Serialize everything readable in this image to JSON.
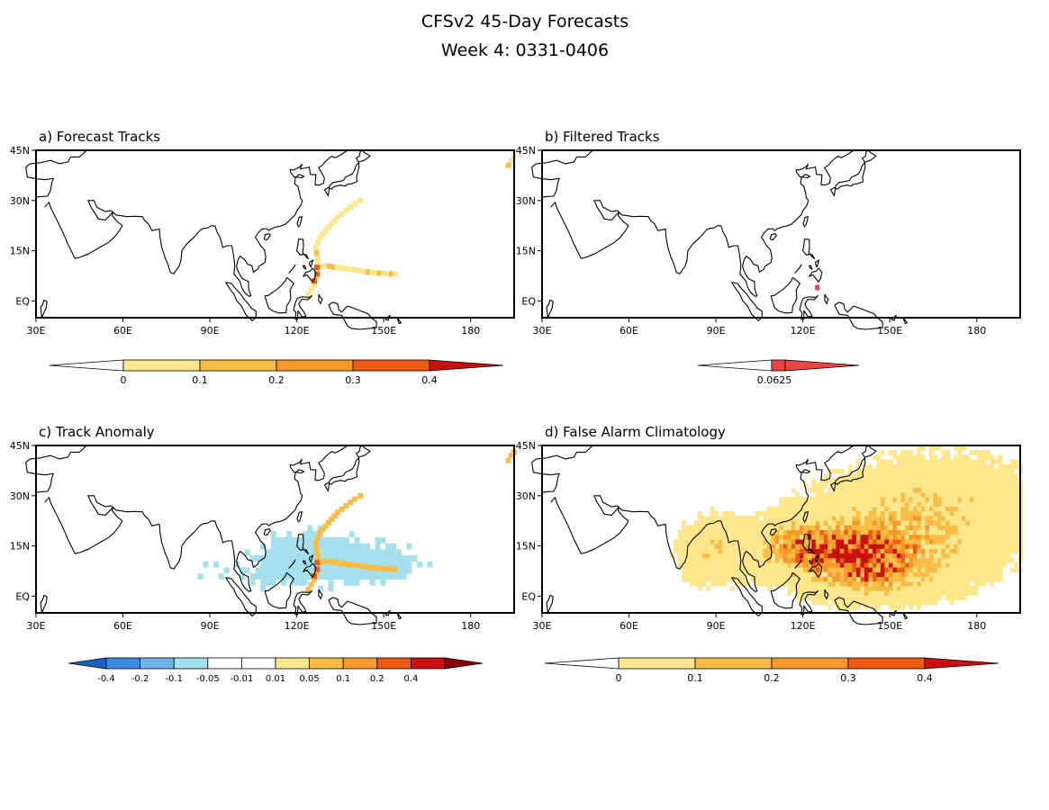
{
  "title": "CFSv2 45-Day Forecasts",
  "subtitle": "Week 4: 0331-0406",
  "lon_ticks": [
    "30E",
    "60E",
    "90E",
    "120E",
    "150E",
    "180"
  ],
  "lat_ticks": [
    "45N",
    "30N",
    "15N",
    "EQ"
  ],
  "lon_range": [
    30,
    195
  ],
  "lat_range": [
    -5,
    45
  ],
  "palette": {
    "warm": [
      "#ffffff",
      "#fde68c",
      "#f9bd45",
      "#f59a2a",
      "#ec5a14",
      "#c81212"
    ],
    "filtered": [
      "#ffffff",
      "#ee4444"
    ],
    "anomaly": [
      "#1a5fc4",
      "#3c8be0",
      "#74b2ea",
      "#a6e0ef",
      "#ffffff",
      "#ffffff",
      "#fde68c",
      "#f9bd45",
      "#f59a2a",
      "#ec5a14",
      "#c81212",
      "#8c0000"
    ],
    "land_outline": "#000000"
  },
  "panels": [
    {
      "id": "a",
      "label": "a) Forecast Tracks",
      "colorbar": {
        "labels": [
          "0",
          "0.1",
          "0.2",
          "0.3",
          "0.4"
        ]
      }
    },
    {
      "id": "b",
      "label": "b) Filtered Tracks",
      "colorbar": {
        "labels": [
          "0.0625"
        ]
      }
    },
    {
      "id": "c",
      "label": "c) Track Anomaly",
      "colorbar": {
        "labels": [
          "-0.4",
          "-0.2",
          "-0.1",
          "-0.05",
          "-0.01",
          "0.01",
          "0.05",
          "0.1",
          "0.2",
          "0.4"
        ]
      }
    },
    {
      "id": "d",
      "label": "d) False Alarm Climatology",
      "colorbar": {
        "labels": [
          "0",
          "0.1",
          "0.2",
          "0.3",
          "0.4"
        ]
      }
    }
  ],
  "tracks": {
    "main_track": [
      [
        124,
        2
      ],
      [
        126,
        5
      ],
      [
        127,
        8
      ],
      [
        127.5,
        10
      ],
      [
        127,
        13
      ],
      [
        126.5,
        16
      ],
      [
        128,
        19
      ],
      [
        131,
        22
      ],
      [
        134,
        25
      ],
      [
        137,
        27
      ],
      [
        140,
        29
      ],
      [
        142,
        30
      ]
    ],
    "east_branch": [
      [
        127,
        10
      ],
      [
        130,
        10.5
      ],
      [
        134,
        10
      ],
      [
        138,
        9.5
      ],
      [
        142,
        9
      ],
      [
        146,
        8.5
      ],
      [
        150,
        8.2
      ],
      [
        154,
        8
      ]
    ],
    "far_north": [
      [
        193,
        40.5
      ],
      [
        194,
        42
      ],
      [
        195,
        43
      ]
    ],
    "hot_cells": [
      [
        127,
        10
      ],
      [
        127,
        8
      ],
      [
        126,
        6
      ]
    ],
    "filtered_cell": [
      125,
      4
    ]
  }
}
